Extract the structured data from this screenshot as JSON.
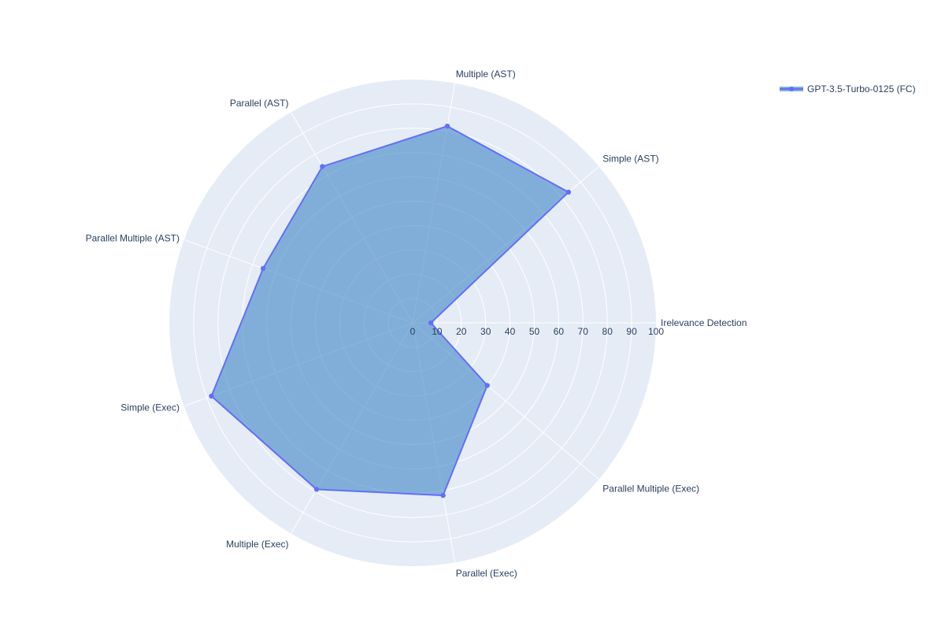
{
  "chart_data": {
    "type": "radar",
    "title": "",
    "categories": [
      "Irelevance Detection",
      "Simple (AST)",
      "Multiple (AST)",
      "Parallel (AST)",
      "Parallel Multiple (AST)",
      "Simple (Exec)",
      "Multiple (Exec)",
      "Parallel (Exec)",
      "Parallel Multiple (Exec)"
    ],
    "series": [
      {
        "name": "GPT-3.5-Turbo-0125 (FC)",
        "values": [
          7.5,
          83.6,
          82.1,
          74.2,
          65.4,
          88.0,
          79.0,
          72.0,
          40.0
        ]
      }
    ],
    "radial_range": [
      0,
      100
    ],
    "radial_ticks": [
      0,
      10,
      20,
      30,
      40,
      50,
      60,
      70,
      80,
      90,
      100
    ],
    "radial_tick_labels": [
      "0",
      "10",
      "20",
      "30",
      "40",
      "50",
      "60",
      "70",
      "80",
      "90",
      "100"
    ],
    "legend_position": "top-right",
    "colors": {
      "line": "#636efa",
      "fill": "#4b8ec8",
      "polar_bg": "#e5ecf6",
      "grid": "#ffffff",
      "text": "#2a3f5f"
    }
  }
}
